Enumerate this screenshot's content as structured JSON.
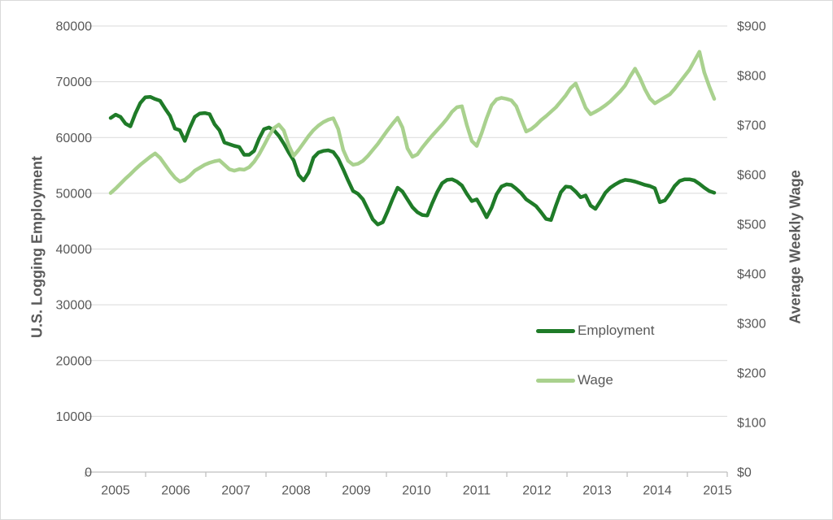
{
  "chart_data": {
    "type": "line",
    "title": "",
    "x_start": "2005-01",
    "x_end": "2015-03",
    "frequency": "monthly",
    "x_axis": {
      "tick_labels": [
        "2005",
        "2006",
        "2007",
        "2008",
        "2009",
        "2010",
        "2011",
        "2012",
        "2013",
        "2014",
        "2015"
      ]
    },
    "left_axis": {
      "title": "U.S. Logging Employment",
      "min": 0,
      "max": 80000,
      "tick_step": 10000,
      "tick_labels": [
        "0",
        "10000",
        "20000",
        "30000",
        "40000",
        "50000",
        "60000",
        "70000",
        "80000"
      ]
    },
    "right_axis": {
      "title": "Average Weekly Wage",
      "min": 0,
      "max": 900,
      "tick_step": 100,
      "tick_labels": [
        "$0",
        "$100",
        "$200",
        "$300",
        "$400",
        "$500",
        "$600",
        "$700",
        "$800",
        "$900"
      ]
    },
    "grid": true,
    "legend_position": "inside-right",
    "legend": [
      {
        "label": "Employment",
        "color": "#1f7b28"
      },
      {
        "label": "Wage",
        "color": "#a9d18e"
      }
    ],
    "colors": {
      "employment_line": "#1f7b28",
      "wage_line": "#a9d18e",
      "gridline": "#d9d9d9",
      "axis_line": "#bfbfbf",
      "tick_text": "#595959"
    },
    "series": [
      {
        "name": "Employment",
        "axis": "left",
        "color": "#1f7b28",
        "values": [
          63500,
          64100,
          63700,
          62500,
          62000,
          64300,
          66200,
          67200,
          67300,
          66900,
          66600,
          65200,
          63900,
          61600,
          61300,
          59400,
          61700,
          63700,
          64300,
          64400,
          64200,
          62400,
          61300,
          59100,
          58800,
          58500,
          58300,
          56900,
          56900,
          57600,
          59800,
          61500,
          61800,
          61300,
          60300,
          58900,
          57300,
          55900,
          53300,
          52300,
          53700,
          56400,
          57300,
          57600,
          57700,
          57400,
          56200,
          54300,
          52300,
          50400,
          49900,
          48900,
          47100,
          45300,
          44400,
          44800,
          46800,
          49000,
          51000,
          50300,
          48900,
          47500,
          46600,
          46100,
          46000,
          48200,
          50200,
          51800,
          52400,
          52500,
          52100,
          51400,
          49900,
          48600,
          48900,
          47400,
          45700,
          47400,
          49800,
          51200,
          51600,
          51500,
          50800,
          50000,
          48900,
          48300,
          47700,
          46600,
          45400,
          45200,
          47800,
          50200,
          51200,
          51100,
          50300,
          49300,
          49600,
          47800,
          47200,
          48600,
          50100,
          51000,
          51600,
          52100,
          52400,
          52300,
          52100,
          51800,
          51500,
          51300,
          50900,
          48400,
          48700,
          49900,
          51300,
          52200,
          52500,
          52500,
          52300,
          51700,
          51000,
          50400,
          50100
        ]
      },
      {
        "name": "Wage",
        "axis": "right",
        "color": "#a9d18e",
        "values": [
          563,
          572,
          582,
          592,
          601,
          611,
          620,
          628,
          636,
          643,
          634,
          620,
          606,
          594,
          586,
          590,
          598,
          608,
          614,
          620,
          624,
          627,
          629,
          620,
          611,
          608,
          611,
          610,
          615,
          626,
          641,
          659,
          678,
          694,
          701,
          689,
          659,
          638,
          650,
          664,
          678,
          690,
          699,
          706,
          711,
          714,
          692,
          650,
          628,
          620,
          622,
          628,
          638,
          650,
          662,
          676,
          690,
          703,
          715,
          695,
          653,
          636,
          641,
          655,
          667,
          679,
          690,
          701,
          713,
          727,
          736,
          738,
          700,
          668,
          658,
          684,
          714,
          740,
          752,
          755,
          753,
          750,
          738,
          712,
          687,
          692,
          700,
          710,
          718,
          727,
          736,
          748,
          760,
          775,
          784,
          760,
          735,
          722,
          727,
          733,
          740,
          748,
          758,
          768,
          780,
          798,
          814,
          795,
          772,
          754,
          744,
          750,
          756,
          762,
          773,
          786,
          799,
          812,
          830,
          848,
          806,
          778,
          753
        ]
      }
    ]
  }
}
